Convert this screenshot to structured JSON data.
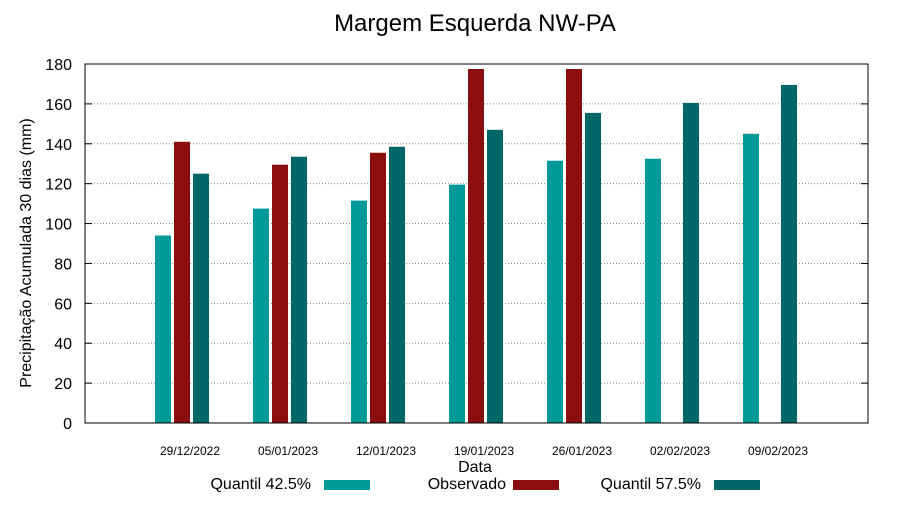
{
  "chart_data": {
    "type": "bar",
    "title": "Margem Esquerda NW-PA",
    "xlabel": "Data",
    "ylabel": "Precipitação Acumulada 30 dias (mm)",
    "ylim": [
      0,
      180
    ],
    "yticks": [
      0,
      20,
      40,
      60,
      80,
      100,
      120,
      140,
      160,
      180
    ],
    "grid": true,
    "legend_position": "bottom",
    "categories": [
      "29/12/2022",
      "05/01/2023",
      "12/01/2023",
      "19/01/2023",
      "26/01/2023",
      "02/02/2023",
      "09/02/2023"
    ],
    "series": [
      {
        "name": "Quantil 42.5%",
        "color": "#009999",
        "values": [
          94,
          107.5,
          111.5,
          119.5,
          131.5,
          132.5,
          145
        ]
      },
      {
        "name": "Observado",
        "color": "#8b0e0e",
        "values": [
          141,
          129.5,
          135.5,
          177.5,
          177.5,
          null,
          null
        ]
      },
      {
        "name": "Quantil 57.5%",
        "color": "#006666",
        "values": [
          125,
          133.5,
          138.5,
          147,
          155.5,
          160.5,
          169.5
        ]
      }
    ]
  }
}
